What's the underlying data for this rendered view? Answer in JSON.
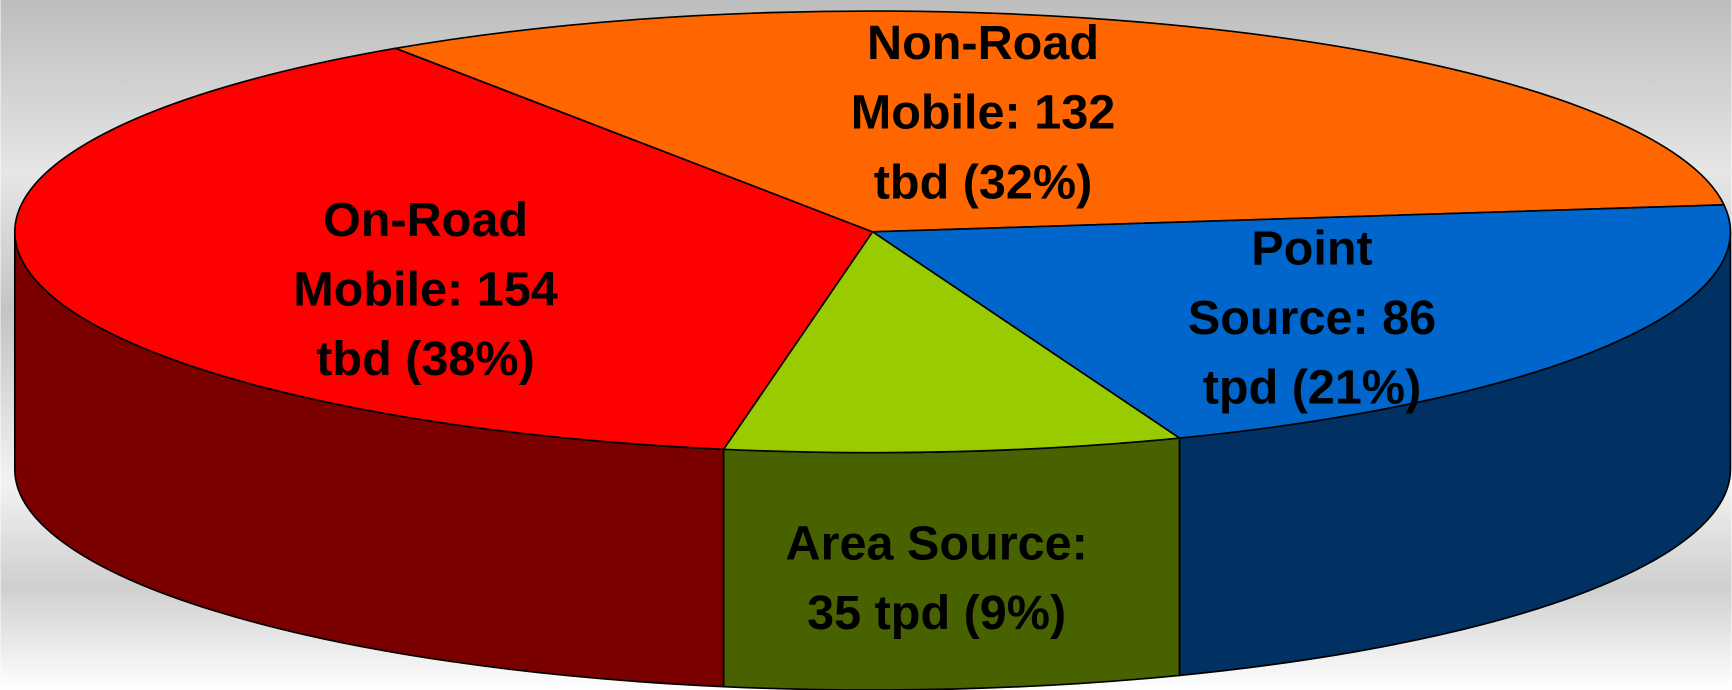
{
  "chart_data": {
    "type": "pie",
    "values": [
      154,
      132,
      86,
      35
    ],
    "value_labels": [
      [
        "On-Road",
        "Mobile: 154",
        "tbd (38%)"
      ],
      [
        "Non-Road",
        "Mobile: 132",
        "tbd (32%)"
      ],
      [
        "Point",
        "Source: 86",
        "tpd (21%)"
      ],
      [
        "Area Source:",
        "35 tpd (9%)"
      ]
    ],
    "colors": [
      "#ff0000",
      "#ff6600",
      "#0066cc",
      "#99cc00"
    ],
    "three_d": true
  }
}
